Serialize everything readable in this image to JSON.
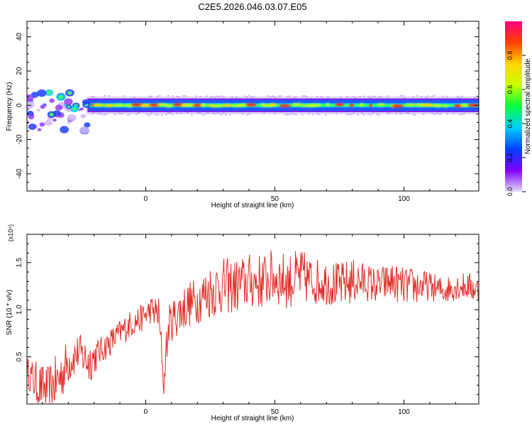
{
  "title": "C2E5.2026.046.03.07.E05",
  "colors": {
    "line": "#e0302a",
    "spectro_low": "#8a2be2",
    "spectro_high": "#ff0000"
  },
  "chart_data": [
    {
      "type": "heatmap",
      "xlabel": "Height of straight line (km)",
      "ylabel": "Frequency (Hz)",
      "xlim": [
        -46,
        129
      ],
      "ylim": [
        -50,
        49
      ],
      "xticks": [
        0,
        50,
        100
      ],
      "yticks": [
        40,
        20,
        0,
        -20,
        -40
      ],
      "colorbar": {
        "label": "Normalized spectral amplitude",
        "ticks": [
          "0.0",
          "0.2",
          "0.4",
          "0.6",
          "0.8"
        ],
        "range": [
          0,
          1
        ],
        "stops": [
          "#e6dcf5",
          "#8000ff",
          "#0040ff",
          "#00d0ff",
          "#00ff40",
          "#c8ff00",
          "#ffd700",
          "#ff4000",
          "#ff0080"
        ]
      },
      "band": {
        "center_hz": 0,
        "half_width_hz": 4,
        "onset_km": -22,
        "scattered_region_km": [
          -46,
          -22
        ],
        "scattered_region_hz": [
          -15,
          8
        ]
      },
      "grid": false
    },
    {
      "type": "line",
      "xlabel": "Height of straight line (km)",
      "ylabel": "SNR (10 * v/v)",
      "y_multiplier": "(x10⁴)",
      "xlim": [
        -46,
        129
      ],
      "ylim": [
        0,
        1.8
      ],
      "xticks": [
        0,
        50,
        100
      ],
      "yticks": [
        "0.5",
        "1.0",
        "1.5"
      ],
      "series": [
        {
          "x": [
            -46,
            -42,
            -38,
            -34,
            -30,
            -26,
            -22,
            -18,
            -14,
            -10,
            -6,
            -2,
            2,
            5,
            7,
            9,
            12,
            16,
            20,
            25,
            30,
            35,
            40,
            45,
            50,
            55,
            60,
            65,
            70,
            75,
            80,
            85,
            90,
            95,
            100,
            105,
            110,
            115,
            120,
            125,
            129
          ],
          "y": [
            0.35,
            0.2,
            0.15,
            0.25,
            0.45,
            0.55,
            0.45,
            0.55,
            0.65,
            0.75,
            0.85,
            0.9,
            1.0,
            0.95,
            0.2,
            0.85,
            0.95,
            1.05,
            1.1,
            1.2,
            1.25,
            1.25,
            1.3,
            1.3,
            1.35,
            1.3,
            1.35,
            1.3,
            1.3,
            1.25,
            1.3,
            1.3,
            1.25,
            1.3,
            1.25,
            1.25,
            1.25,
            1.2,
            1.25,
            1.25,
            1.2
          ],
          "noise": [
            0.15,
            0.25,
            0.25,
            0.3,
            0.25,
            0.2,
            0.25,
            0.15,
            0.15,
            0.15,
            0.15,
            0.15,
            0.15,
            0.2,
            0.1,
            0.2,
            0.25,
            0.25,
            0.25,
            0.3,
            0.3,
            0.3,
            0.3,
            0.3,
            0.3,
            0.3,
            0.3,
            0.25,
            0.25,
            0.25,
            0.25,
            0.2,
            0.2,
            0.2,
            0.2,
            0.2,
            0.15,
            0.15,
            0.15,
            0.15,
            0.15
          ]
        }
      ],
      "grid": false
    }
  ]
}
